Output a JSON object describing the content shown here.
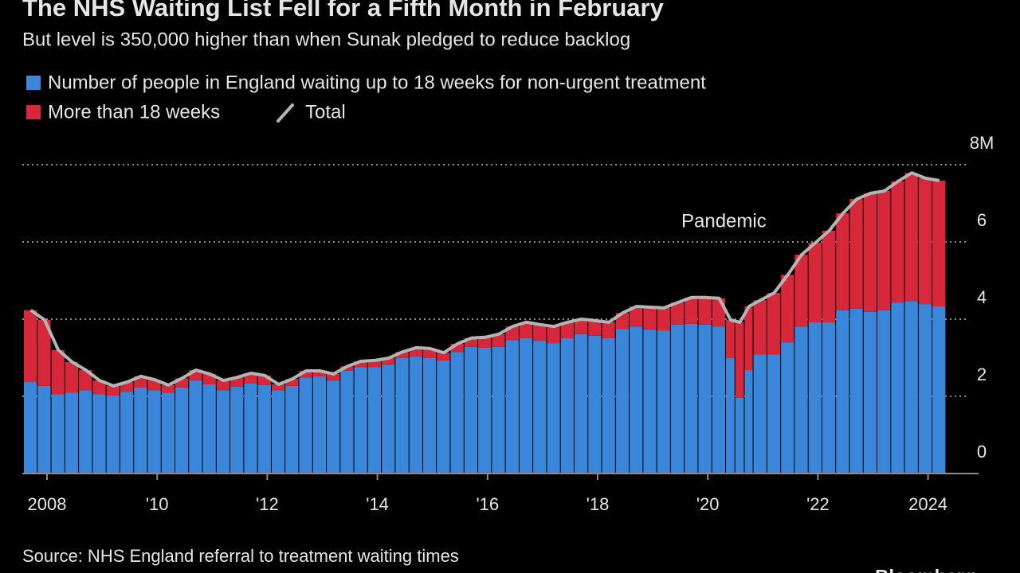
{
  "chart_data": {
    "type": "stacked-bar",
    "title": "The NHS Waiting List Fell for a Fifth Month in February",
    "subtitle": "But level is 350,000 higher than when Sunak pledged to reduce backlog",
    "annotation": "Pandemic",
    "source": "Source: NHS England referral to treatment waiting times",
    "brand": "Bloomberg",
    "x": [
      2007.58,
      2007.83,
      2008.08,
      2008.33,
      2008.58,
      2008.83,
      2009.08,
      2009.33,
      2009.58,
      2009.83,
      2010.08,
      2010.33,
      2010.58,
      2010.83,
      2011.08,
      2011.33,
      2011.58,
      2011.83,
      2012.08,
      2012.33,
      2012.58,
      2012.83,
      2013.08,
      2013.33,
      2013.58,
      2013.83,
      2014.08,
      2014.33,
      2014.58,
      2014.83,
      2015.08,
      2015.33,
      2015.58,
      2015.83,
      2016.08,
      2016.33,
      2016.58,
      2016.83,
      2017.08,
      2017.33,
      2017.58,
      2017.83,
      2018.08,
      2018.33,
      2018.58,
      2018.83,
      2019.08,
      2019.33,
      2019.58,
      2019.83,
      2020.08,
      2020.33,
      2020.5,
      2020.67,
      2020.83,
      2021.08,
      2021.33,
      2021.58,
      2021.83,
      2022.08,
      2022.33,
      2022.58,
      2022.83,
      2023.08,
      2023.33,
      2023.58,
      2023.83,
      2024.08
    ],
    "series": [
      {
        "name": "Number of people in England waiting up to 18 weeks for non-urgent treatment",
        "color": "#3a86d8",
        "values": [
          2.37,
          2.27,
          2.06,
          2.1,
          2.16,
          2.06,
          2.02,
          2.12,
          2.23,
          2.16,
          2.1,
          2.23,
          2.41,
          2.31,
          2.16,
          2.25,
          2.33,
          2.29,
          2.16,
          2.27,
          2.49,
          2.52,
          2.41,
          2.66,
          2.76,
          2.76,
          2.82,
          2.99,
          3.03,
          2.99,
          2.93,
          3.15,
          3.28,
          3.26,
          3.28,
          3.46,
          3.51,
          3.44,
          3.38,
          3.51,
          3.61,
          3.57,
          3.51,
          3.75,
          3.81,
          3.73,
          3.71,
          3.86,
          3.88,
          3.86,
          3.81,
          2.99,
          1.96,
          2.68,
          3.09,
          3.09,
          3.4,
          3.81,
          3.92,
          3.92,
          4.23,
          4.27,
          4.19,
          4.23,
          4.43,
          4.47,
          4.39,
          4.33
        ]
      },
      {
        "name": "More than 18 weeks",
        "color": "#d6283a",
        "values": [
          1.86,
          1.71,
          1.14,
          0.79,
          0.52,
          0.35,
          0.25,
          0.25,
          0.29,
          0.27,
          0.19,
          0.24,
          0.27,
          0.27,
          0.25,
          0.24,
          0.27,
          0.25,
          0.15,
          0.18,
          0.17,
          0.14,
          0.17,
          0.12,
          0.15,
          0.17,
          0.17,
          0.16,
          0.23,
          0.25,
          0.2,
          0.21,
          0.23,
          0.27,
          0.33,
          0.35,
          0.41,
          0.42,
          0.43,
          0.41,
          0.39,
          0.39,
          0.41,
          0.41,
          0.52,
          0.58,
          0.58,
          0.57,
          0.68,
          0.7,
          0.73,
          0.99,
          1.96,
          1.65,
          1.4,
          1.59,
          1.75,
          1.86,
          2.06,
          2.37,
          2.51,
          2.84,
          3.07,
          3.09,
          3.14,
          3.32,
          3.26,
          3.26
        ]
      },
      {
        "name": "Total",
        "type": "line",
        "color": "#b4b4b4",
        "values": [
          4.23,
          3.98,
          3.2,
          2.89,
          2.68,
          2.41,
          2.27,
          2.37,
          2.52,
          2.43,
          2.29,
          2.47,
          2.68,
          2.58,
          2.41,
          2.49,
          2.6,
          2.54,
          2.31,
          2.45,
          2.66,
          2.66,
          2.58,
          2.78,
          2.91,
          2.93,
          2.99,
          3.15,
          3.26,
          3.24,
          3.13,
          3.36,
          3.51,
          3.53,
          3.61,
          3.81,
          3.92,
          3.86,
          3.81,
          3.92,
          4.0,
          3.96,
          3.92,
          4.16,
          4.33,
          4.31,
          4.29,
          4.43,
          4.56,
          4.56,
          4.54,
          3.98,
          3.92,
          4.33,
          4.49,
          4.68,
          5.15,
          5.67,
          5.98,
          6.29,
          6.74,
          7.11,
          7.26,
          7.32,
          7.57,
          7.79,
          7.65,
          7.59
        ]
      }
    ],
    "xlim": [
      2007.55,
      2024.7
    ],
    "xticks": [
      {
        "value": 2008,
        "label": "2008"
      },
      {
        "value": 2010,
        "label": "'10"
      },
      {
        "value": 2012,
        "label": "'12"
      },
      {
        "value": 2014,
        "label": "'14"
      },
      {
        "value": 2016,
        "label": "'16"
      },
      {
        "value": 2018,
        "label": "'18"
      },
      {
        "value": 2020,
        "label": "'20"
      },
      {
        "value": 2022,
        "label": "'22"
      },
      {
        "value": 2024,
        "label": "2024"
      }
    ],
    "ylim": [
      0,
      8
    ],
    "yticks": [
      0,
      2,
      4,
      6,
      {
        "value": 8,
        "label": "8M"
      }
    ],
    "grid": true
  }
}
